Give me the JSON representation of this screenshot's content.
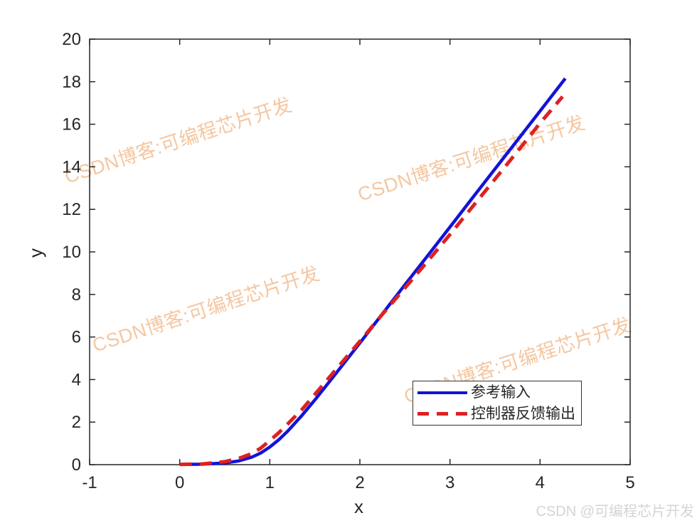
{
  "watermark": {
    "text": "CSDN博客:可编程芯片开发",
    "credit": "CSDN @可编程芯片开发",
    "color": "#f4c7a2",
    "credit_color": "#d4d4d4"
  },
  "chart_data": {
    "type": "line",
    "title": "",
    "xlabel": "x",
    "ylabel": "y",
    "xlim": [
      -1,
      5
    ],
    "ylim": [
      0,
      20
    ],
    "x_ticks": [
      -1,
      0,
      1,
      2,
      3,
      4,
      5
    ],
    "y_ticks": [
      0,
      2,
      4,
      6,
      8,
      10,
      12,
      14,
      16,
      18,
      20
    ],
    "grid": false,
    "box": true,
    "axis_color": "#262626",
    "legend_position": "inside-lower-right",
    "series": [
      {
        "name": "参考输入",
        "color": "#1313d8",
        "line_style": "solid",
        "line_width": 4.5,
        "x": [
          0,
          0.25,
          0.5,
          0.65,
          0.8,
          0.9,
          1.0,
          1.1,
          1.2,
          1.35,
          1.5,
          1.75,
          2.0,
          2.25,
          2.5,
          2.75,
          3.0,
          3.25,
          3.5,
          3.75,
          4.0,
          4.28
        ],
        "y": [
          0.01,
          0.02,
          0.08,
          0.17,
          0.35,
          0.55,
          0.83,
          1.17,
          1.58,
          2.28,
          3.04,
          4.37,
          5.72,
          7.09,
          8.45,
          9.81,
          11.17,
          12.54,
          13.9,
          15.26,
          16.62,
          18.15
        ]
      },
      {
        "name": "控制器反馈输出",
        "color": "#de2121",
        "line_style": "dashed",
        "line_width": 5,
        "x": [
          0,
          0.25,
          0.5,
          0.65,
          0.8,
          0.9,
          1.0,
          1.1,
          1.2,
          1.35,
          1.5,
          1.75,
          2.0,
          2.25,
          2.5,
          2.75,
          3.0,
          3.25,
          3.5,
          3.75,
          4.0,
          4.25
        ],
        "y": [
          0.01,
          0.03,
          0.14,
          0.28,
          0.52,
          0.78,
          1.13,
          1.5,
          1.92,
          2.56,
          3.3,
          4.55,
          5.8,
          7.07,
          8.3,
          9.55,
          10.82,
          12.12,
          13.42,
          14.73,
          16.05,
          17.3
        ]
      }
    ]
  }
}
